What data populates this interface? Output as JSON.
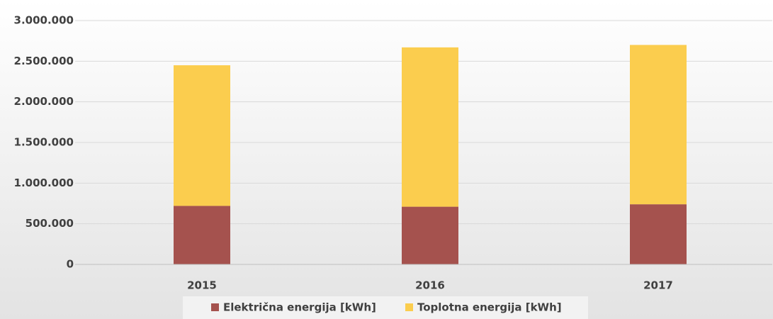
{
  "chart_data": {
    "type": "stacked_bar",
    "categories": [
      "2015",
      "2016",
      "2017"
    ],
    "series": [
      {
        "name": "Električna energija [kWh]",
        "color": "#a5524e",
        "values": [
          720000,
          710000,
          740000
        ]
      },
      {
        "name": "Toplotna energija [kWh]",
        "color": "#fbcd4e",
        "values": [
          1730000,
          1960000,
          1960000
        ]
      }
    ],
    "ylim": [
      0,
      3000000
    ],
    "yticks": [
      0,
      {
        "value": 500000,
        "label": "500.000"
      },
      {
        "value": 1000000,
        "label": "1.000.000"
      },
      {
        "value": 1500000,
        "label": "1.500.000"
      },
      {
        "value": 2000000,
        "label": "2.000.000"
      },
      {
        "value": 2500000,
        "label": "2.500.000"
      },
      {
        "value": 3000000,
        "label": "3.000.000"
      }
    ],
    "grid": true,
    "legend": "bottom"
  }
}
